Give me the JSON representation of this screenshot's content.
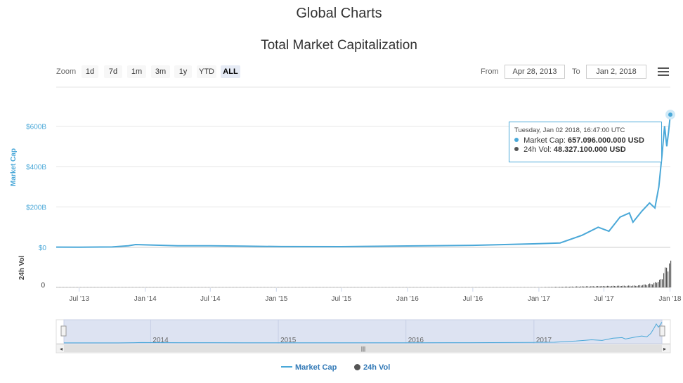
{
  "header": {
    "title": "Global Charts",
    "subtitle": "Total Market Capitalization"
  },
  "toolbar": {
    "zoom_label": "Zoom",
    "zoom_buttons": [
      "1d",
      "7d",
      "1m",
      "3m",
      "1y",
      "YTD",
      "ALL"
    ],
    "active_zoom": "ALL",
    "from_label": "From",
    "from_value": "Apr 28, 2013",
    "to_label": "To",
    "to_value": "Jan 2, 2018",
    "menu_icon": "hamburger-menu-icon"
  },
  "tooltip": {
    "date": "Tuesday, Jan 02 2018, 16:47:00 UTC",
    "market_cap_label": "Market Cap:",
    "market_cap_value": "657.096.000.000 USD",
    "volume_label": "24h Vol:",
    "volume_value": "48.327.100.000 USD"
  },
  "colors": {
    "market_cap": "#4aa8d8",
    "volume": "#555555",
    "navigator_fill": "#dde3f2"
  },
  "chart_data": {
    "type": "line",
    "title": "Total Market Capitalization",
    "xlabel": "",
    "ylabel": "Market Cap",
    "y2label": "24h Vol",
    "x_ticks": [
      "Jul '13",
      "Jan '14",
      "Jul '14",
      "Jan '15",
      "Jul '15",
      "Jan '16",
      "Jul '16",
      "Jan '17",
      "Jul '17",
      "Jan '18"
    ],
    "y_ticks": [
      "$0",
      "$200B",
      "$400B",
      "$600B"
    ],
    "y2_ticks": [
      "0"
    ],
    "ylim": [
      0,
      700
    ],
    "units": "billion USD",
    "series": [
      {
        "name": "Market Cap",
        "x": [
          "2013-04-28",
          "2013-07-01",
          "2013-10-01",
          "2013-11-15",
          "2013-12-05",
          "2014-01-15",
          "2014-04-01",
          "2014-07-01",
          "2014-10-01",
          "2015-01-15",
          "2015-07-01",
          "2016-01-01",
          "2016-07-01",
          "2017-01-01",
          "2017-03-01",
          "2017-05-01",
          "2017-06-15",
          "2017-07-15",
          "2017-08-15",
          "2017-09-10",
          "2017-09-20",
          "2017-10-15",
          "2017-11-05",
          "2017-11-20",
          "2017-12-01",
          "2017-12-10",
          "2017-12-17",
          "2017-12-23",
          "2017-12-28",
          "2018-01-02"
        ],
        "values": [
          1.5,
          1.2,
          2,
          8,
          14,
          12,
          8,
          8,
          6,
          4,
          3.5,
          7,
          10,
          18,
          22,
          60,
          100,
          80,
          150,
          170,
          125,
          180,
          220,
          195,
          300,
          460,
          600,
          500,
          570,
          657
        ]
      },
      {
        "name": "24h Vol",
        "x": [
          "2013-04-28",
          "2014-01-01",
          "2015-01-01",
          "2016-01-01",
          "2017-01-01",
          "2017-05-01",
          "2017-08-01",
          "2017-10-01",
          "2017-11-15",
          "2017-12-05",
          "2017-12-20",
          "2018-01-02"
        ],
        "values": [
          0,
          0.1,
          0.1,
          0.2,
          0.5,
          2,
          3,
          3.5,
          8,
          15,
          40,
          48.3
        ]
      }
    ],
    "legend": [
      "Market Cap",
      "24h Vol"
    ],
    "legend_position": "bottom-center",
    "navigator_labels": [
      "2014",
      "2015",
      "2016",
      "2017"
    ],
    "grid": true
  }
}
